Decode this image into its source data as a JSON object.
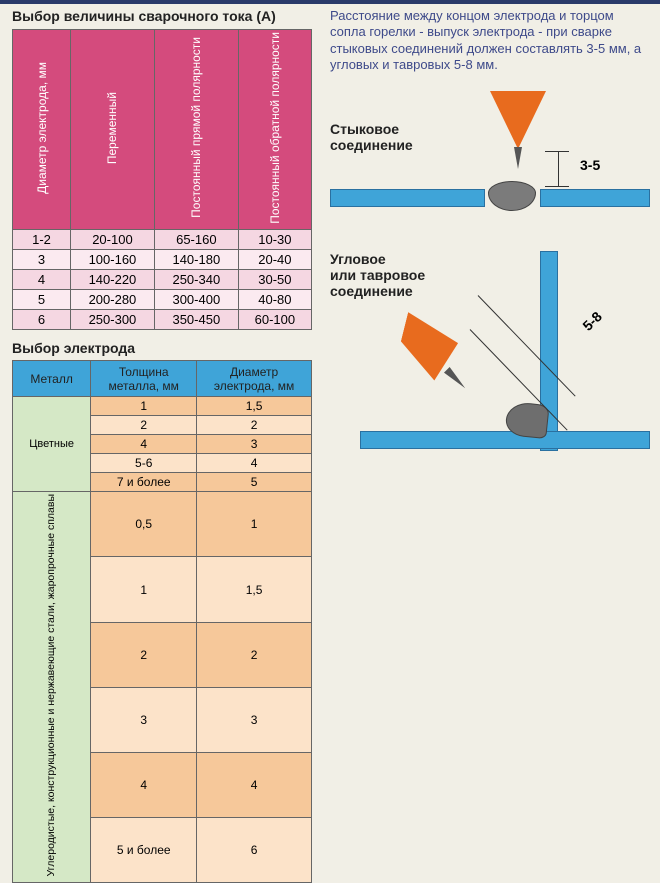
{
  "table1": {
    "title": "Выбор величины сварочного тока (А)",
    "headers": [
      "Диаметр электрода, мм",
      "Переменный",
      "Постоянный прямой полярности",
      "Постоянный обратной полярности"
    ],
    "rows": [
      [
        "1-2",
        "20-100",
        "65-160",
        "10-30"
      ],
      [
        "3",
        "100-160",
        "140-180",
        "20-40"
      ],
      [
        "4",
        "140-220",
        "250-340",
        "30-50"
      ],
      [
        "5",
        "200-280",
        "300-400",
        "40-80"
      ],
      [
        "6",
        "250-300",
        "350-450",
        "60-100"
      ]
    ],
    "header_bg": "#d44b7d",
    "row_odd_bg": "#f5d7e2",
    "row_even_bg": "#fbeaf0"
  },
  "table2": {
    "title": "Выбор электрода",
    "headers": [
      "Металл",
      "Толщина металла, мм",
      "Диаметр электрода, мм"
    ],
    "groups": [
      {
        "metal": "Цветные",
        "rows": [
          [
            "1",
            "1,5"
          ],
          [
            "2",
            "2"
          ],
          [
            "4",
            "3"
          ],
          [
            "5-6",
            "4"
          ],
          [
            "7 и более",
            "5"
          ]
        ]
      },
      {
        "metal": "Углеродистые, конструкционные и нержавеющие стали, жаропрочные сплавы",
        "rows": [
          [
            "0,5",
            "1"
          ],
          [
            "1",
            "1,5"
          ],
          [
            "2",
            "2"
          ],
          [
            "3",
            "3"
          ],
          [
            "4",
            "4"
          ],
          [
            "5 и более",
            "6"
          ]
        ]
      }
    ],
    "header_bg": "#3fa4d8",
    "metal_bg": "#d5e8c6",
    "cell_bg_a": "#f6c89a",
    "cell_bg_b": "#fce3c9"
  },
  "intro": "Расстояние между концом электрода и торцом сопла горелки - выпуск электрода - при сварке стыковых соединений должен составлять 3-5 мм, а угловых и тавровых 5-8 мм.",
  "diag1": {
    "title_l1": "Стыковое",
    "title_l2": "соединение",
    "dim": "3-5"
  },
  "diag2": {
    "title_l1": "Угловое",
    "title_l2": "или тавровое",
    "title_l3": "соединение",
    "dim": "5-8"
  },
  "colors": {
    "nozzle": "#e86b1e",
    "plate": "#3fa4d8",
    "bead": "#7b7b7b",
    "text_intro": "#3e4a8a",
    "page_bg": "#f1efe6"
  }
}
